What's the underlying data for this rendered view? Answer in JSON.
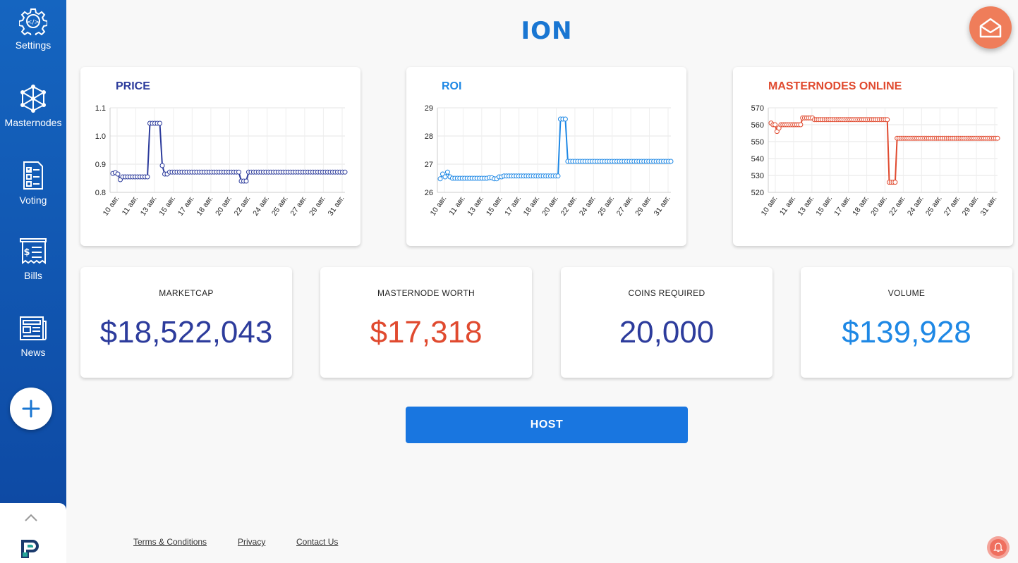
{
  "app_title": "ION",
  "sidebar": {
    "items": [
      {
        "label": "Settings",
        "icon": "gear-code-icon"
      },
      {
        "label": "Masternodes",
        "icon": "network-node-icon"
      },
      {
        "label": "Voting",
        "icon": "checklist-icon"
      },
      {
        "label": "Bills",
        "icon": "receipt-icon"
      },
      {
        "label": "News",
        "icon": "newspaper-icon"
      }
    ],
    "add_icon": "plus-icon"
  },
  "charts": {
    "price": {
      "title": "PRICE",
      "color": "#2d3c9c"
    },
    "roi": {
      "title": "ROI",
      "color": "#1e88e5"
    },
    "masternodes": {
      "title": "MASTERNODES ONLINE",
      "color": "#e04a2f"
    }
  },
  "chart_data": [
    {
      "type": "line",
      "title": "PRICE",
      "x_ticks": [
        "10 авг.",
        "11 авг.",
        "13 авг.",
        "15 авг.",
        "17 авг.",
        "18 авг.",
        "20 авг.",
        "22 авг.",
        "24 авг.",
        "25 авг.",
        "27 авг.",
        "29 авг.",
        "31 авг."
      ],
      "ylim": [
        0.8,
        1.1
      ],
      "y_ticks": [
        "0.8",
        "0.9",
        "1.0",
        "1.1"
      ],
      "series": [
        {
          "values": [
            0.867,
            0.87,
            0.865,
            0.845,
            0.855,
            0.855,
            0.855,
            0.855,
            0.855,
            0.855,
            0.855,
            0.855,
            0.855,
            0.855,
            0.855,
            1.045,
            1.045,
            1.045,
            1.045,
            1.045,
            0.895,
            0.865,
            0.865,
            0.872,
            0.872,
            0.872,
            0.872,
            0.872,
            0.872,
            0.872,
            0.872,
            0.872,
            0.872,
            0.872,
            0.872,
            0.872,
            0.872,
            0.872,
            0.872,
            0.872,
            0.872,
            0.872,
            0.872,
            0.872,
            0.872,
            0.872,
            0.872,
            0.872,
            0.872,
            0.872,
            0.872,
            0.872,
            0.84,
            0.84,
            0.84,
            0.872,
            0.872,
            0.872,
            0.872,
            0.872,
            0.872,
            0.872,
            0.872,
            0.872,
            0.872,
            0.872,
            0.872,
            0.872,
            0.872,
            0.872,
            0.872,
            0.872,
            0.872,
            0.872,
            0.872,
            0.872,
            0.872,
            0.872,
            0.872,
            0.872,
            0.872,
            0.872,
            0.872,
            0.872,
            0.872,
            0.872,
            0.872,
            0.872,
            0.872,
            0.872,
            0.872,
            0.872,
            0.872,
            0.872,
            0.872
          ]
        }
      ]
    },
    {
      "type": "line",
      "title": "ROI",
      "x_ticks": [
        "10 авг.",
        "11 авг.",
        "13 авг.",
        "15 авг.",
        "17 авг.",
        "18 авг.",
        "20 авг.",
        "22 авг.",
        "24 авг.",
        "25 авг.",
        "27 авг.",
        "29 авг.",
        "31 авг."
      ],
      "ylim": [
        26,
        29
      ],
      "y_ticks": [
        "26",
        "27",
        "28",
        "29"
      ],
      "series": [
        {
          "values": [
            26.48,
            26.65,
            26.55,
            26.72,
            26.55,
            26.5,
            26.5,
            26.5,
            26.5,
            26.5,
            26.5,
            26.5,
            26.5,
            26.5,
            26.5,
            26.5,
            26.5,
            26.5,
            26.5,
            26.5,
            26.52,
            26.52,
            26.48,
            26.48,
            26.55,
            26.55,
            26.58,
            26.58,
            26.58,
            26.58,
            26.58,
            26.58,
            26.58,
            26.58,
            26.58,
            26.58,
            26.58,
            26.58,
            26.58,
            26.58,
            26.58,
            26.58,
            26.58,
            26.58,
            26.58,
            26.58,
            26.58,
            26.58,
            26.58,
            28.6,
            28.6,
            28.6,
            27.1,
            27.1,
            27.1,
            27.1,
            27.1,
            27.1,
            27.1,
            27.1,
            27.1,
            27.1,
            27.1,
            27.1,
            27.1,
            27.1,
            27.1,
            27.1,
            27.1,
            27.1,
            27.1,
            27.1,
            27.1,
            27.1,
            27.1,
            27.1,
            27.1,
            27.1,
            27.1,
            27.1,
            27.1,
            27.1,
            27.1,
            27.1,
            27.1,
            27.1,
            27.1,
            27.1,
            27.1,
            27.1,
            27.1,
            27.1,
            27.1,
            27.1,
            27.1
          ]
        }
      ]
    },
    {
      "type": "line",
      "title": "MASTERNODES ONLINE",
      "x_ticks": [
        "10 авг.",
        "11 авг.",
        "13 авг.",
        "15 авг.",
        "17 авг.",
        "18 авг.",
        "20 авг.",
        "22 авг.",
        "24 авг.",
        "25 авг.",
        "27 авг.",
        "29 авг.",
        "31 авг."
      ],
      "ylim": [
        520,
        570
      ],
      "y_ticks": [
        "520",
        "530",
        "540",
        "550",
        "560",
        "570"
      ],
      "series": [
        {
          "values": [
            561,
            560,
            560,
            556,
            558,
            560,
            560,
            560,
            560,
            560,
            560,
            560,
            560,
            560,
            560,
            560,
            564,
            564,
            564,
            564,
            564,
            564,
            563,
            563,
            563,
            563,
            563,
            563,
            563,
            563,
            563,
            563,
            563,
            563,
            563,
            563,
            563,
            563,
            563,
            563,
            563,
            563,
            563,
            563,
            563,
            563,
            563,
            563,
            563,
            563,
            563,
            563,
            563,
            563,
            563,
            563,
            563,
            563,
            563,
            563,
            526,
            526,
            526,
            526,
            552,
            552,
            552,
            552,
            552,
            552,
            552,
            552,
            552,
            552,
            552,
            552,
            552,
            552,
            552,
            552,
            552,
            552,
            552,
            552,
            552,
            552,
            552,
            552,
            552,
            552,
            552,
            552,
            552,
            552,
            552,
            552,
            552,
            552,
            552,
            552,
            552,
            552,
            552,
            552,
            552,
            552,
            552,
            552,
            552,
            552,
            552,
            552,
            552,
            552,
            552,
            552
          ]
        }
      ]
    }
  ],
  "stats": [
    {
      "label": "MARKETCAP",
      "value": "$18,522,043",
      "color": "#2d3c9c"
    },
    {
      "label": "MASTERNODE WORTH",
      "value": "$17,318",
      "color": "#e04a2f"
    },
    {
      "label": "COINS REQUIRED",
      "value": "20,000",
      "color": "#2d3c9c"
    },
    {
      "label": "VOLUME",
      "value": "$139,928",
      "color": "#1e88e5"
    }
  ],
  "host_label": "HOST",
  "footer": {
    "terms": "Terms & Conditions",
    "privacy": "Privacy",
    "contact": "Contact Us"
  },
  "icons": {
    "mail": "mail-icon",
    "bell": "bell-icon",
    "chevron": "chevron-up-icon",
    "logo": "brand-logo-icon"
  }
}
